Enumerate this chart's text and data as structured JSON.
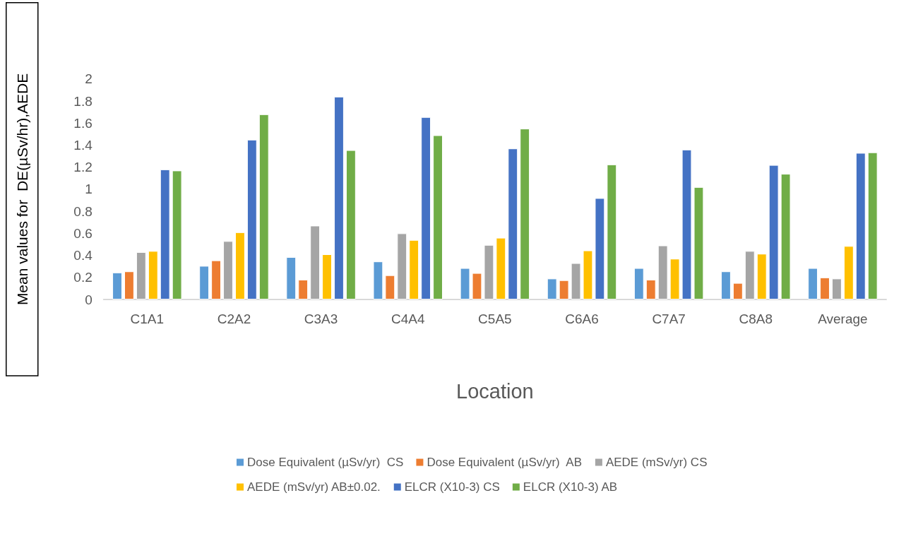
{
  "chart_data": {
    "type": "bar",
    "xlabel": "Location",
    "ylabel": "Mean values for  DE(µSv/hr),AEDE",
    "categories": [
      "C1A1",
      "C2A2",
      "C3A3",
      "C4A4",
      "C5A5",
      "C6A6",
      "C7A7",
      "C8A8",
      "Average"
    ],
    "series": [
      {
        "name": "Dose Equivalent (µSv/yr)  CS",
        "color": "#5b9bd5",
        "values": [
          0.245,
          0.305,
          0.385,
          0.345,
          0.285,
          0.19,
          0.285,
          0.255,
          0.285
        ]
      },
      {
        "name": "Dose Equivalent (µSv/yr)  AB",
        "color": "#ed7d31",
        "values": [
          0.255,
          0.355,
          0.18,
          0.22,
          0.24,
          0.175,
          0.18,
          0.15,
          0.2
        ]
      },
      {
        "name": "AEDE (mSv/yr) CS",
        "color": "#a5a5a5",
        "values": [
          0.43,
          0.53,
          0.67,
          0.6,
          0.495,
          0.33,
          0.49,
          0.44,
          0.19
        ]
      },
      {
        "name": "AEDE (mSv/yr) AB±0.02.",
        "color": "#ffc000",
        "values": [
          0.44,
          0.61,
          0.41,
          0.54,
          0.56,
          0.445,
          0.37,
          0.415,
          0.485
        ]
      },
      {
        "name": "ELCR (X10-3) CS",
        "color": "#4472c4",
        "values": [
          1.18,
          1.45,
          1.84,
          1.655,
          1.37,
          0.92,
          1.36,
          1.22,
          1.33
        ]
      },
      {
        "name": "ELCR (X10-3) AB",
        "color": "#70ad47",
        "values": [
          1.17,
          1.68,
          1.355,
          1.49,
          1.55,
          1.225,
          1.02,
          1.14,
          1.335
        ]
      }
    ],
    "ylim": [
      0,
      2
    ],
    "yticks": [
      0,
      0.2,
      0.4,
      0.6,
      0.8,
      1,
      1.2,
      1.4,
      1.6,
      1.8,
      2
    ],
    "grid": false,
    "legend": "bottom"
  }
}
